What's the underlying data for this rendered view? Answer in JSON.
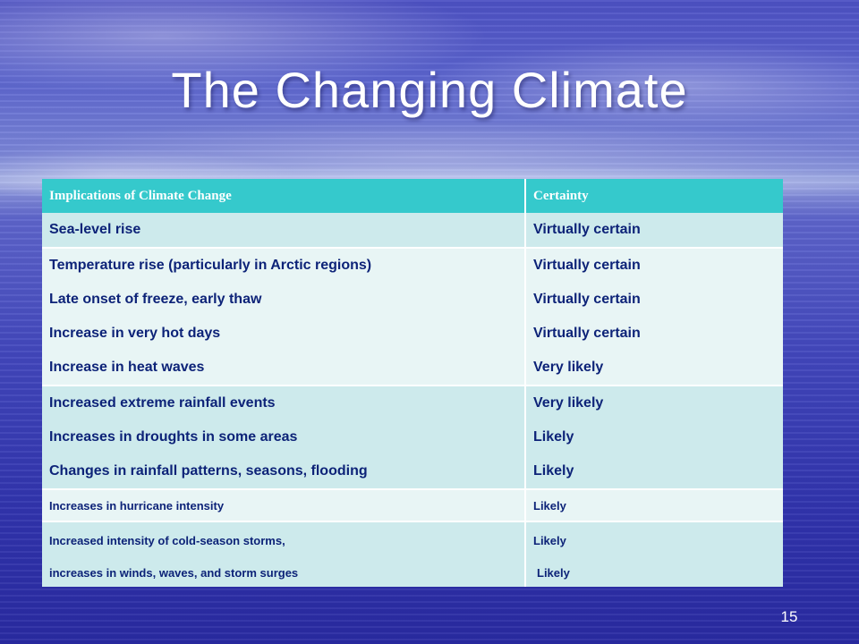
{
  "slide": {
    "title": "The Changing Climate",
    "page_number": "15"
  },
  "table": {
    "headers": [
      "Implications of Climate Change",
      "Certainty"
    ],
    "rows": [
      [
        "Sea-level rise",
        "Virtually certain"
      ],
      [
        "Temperature rise (particularly in Arctic regions)",
        "Virtually certain"
      ],
      [
        "Late onset of freeze, early thaw",
        "Virtually certain"
      ],
      [
        "Increase in very hot days",
        "Virtually certain"
      ],
      [
        "Increase in heat waves",
        "Very likely"
      ],
      [
        "Increased extreme rainfall events",
        "Very likely"
      ],
      [
        "Increases in droughts in some areas",
        "Likely"
      ],
      [
        "Changes in rainfall patterns, seasons, flooding",
        "Likely"
      ],
      [
        "Increases in hurricane intensity",
        "Likely"
      ],
      [
        "Increased intensity of cold-season storms,",
        "Likely"
      ],
      [
        "increases in winds, waves, and storm surges",
        "Likely"
      ]
    ]
  },
  "colors": {
    "header_background": "#35c9cc",
    "row_band_dark": "#cdeaec",
    "row_band_light": "#e8f5f5",
    "cell_text": "#0d2378"
  }
}
